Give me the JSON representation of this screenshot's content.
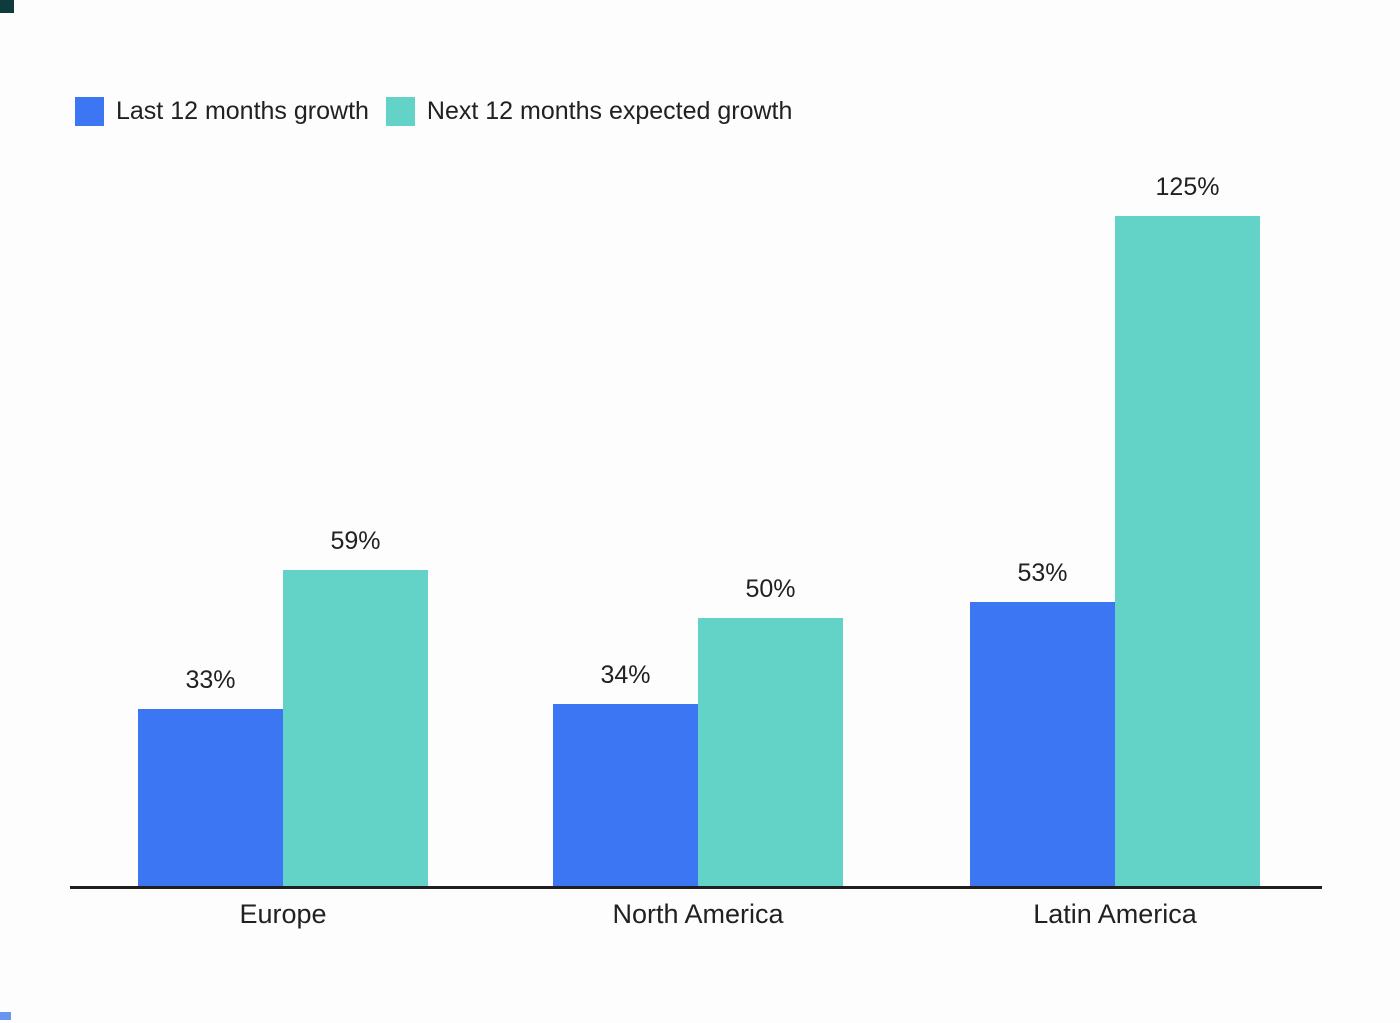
{
  "legend": {
    "items": [
      {
        "label": "Last 12 months growth",
        "swatch_icon": "blue-square-icon",
        "color": "#3d76f2"
      },
      {
        "label": "Next 12 months expected growth",
        "swatch_icon": "teal-square-icon",
        "color": "#63d2c7"
      }
    ]
  },
  "chart_data": {
    "type": "bar",
    "title": "",
    "xlabel": "",
    "ylabel": "",
    "categories": [
      "Europe",
      "North America",
      "Latin America"
    ],
    "series": [
      {
        "name": "Last 12 months growth",
        "color": "#3d76f2",
        "values": [
          33,
          34,
          53
        ],
        "labels": [
          "33%",
          "34%",
          "53%"
        ]
      },
      {
        "name": "Next 12 months expected growth",
        "color": "#63d2c7",
        "values": [
          59,
          50,
          125
        ],
        "labels": [
          "59%",
          "50%",
          "125%"
        ]
      }
    ],
    "ylim": [
      0,
      135
    ],
    "value_label_format": "percent",
    "grid": false,
    "y_axis_visible": false,
    "legend_position": "top-left",
    "axis_line_color": "#1f1f1f",
    "text_color": "#212121",
    "background_color": "#fdfdfd"
  }
}
